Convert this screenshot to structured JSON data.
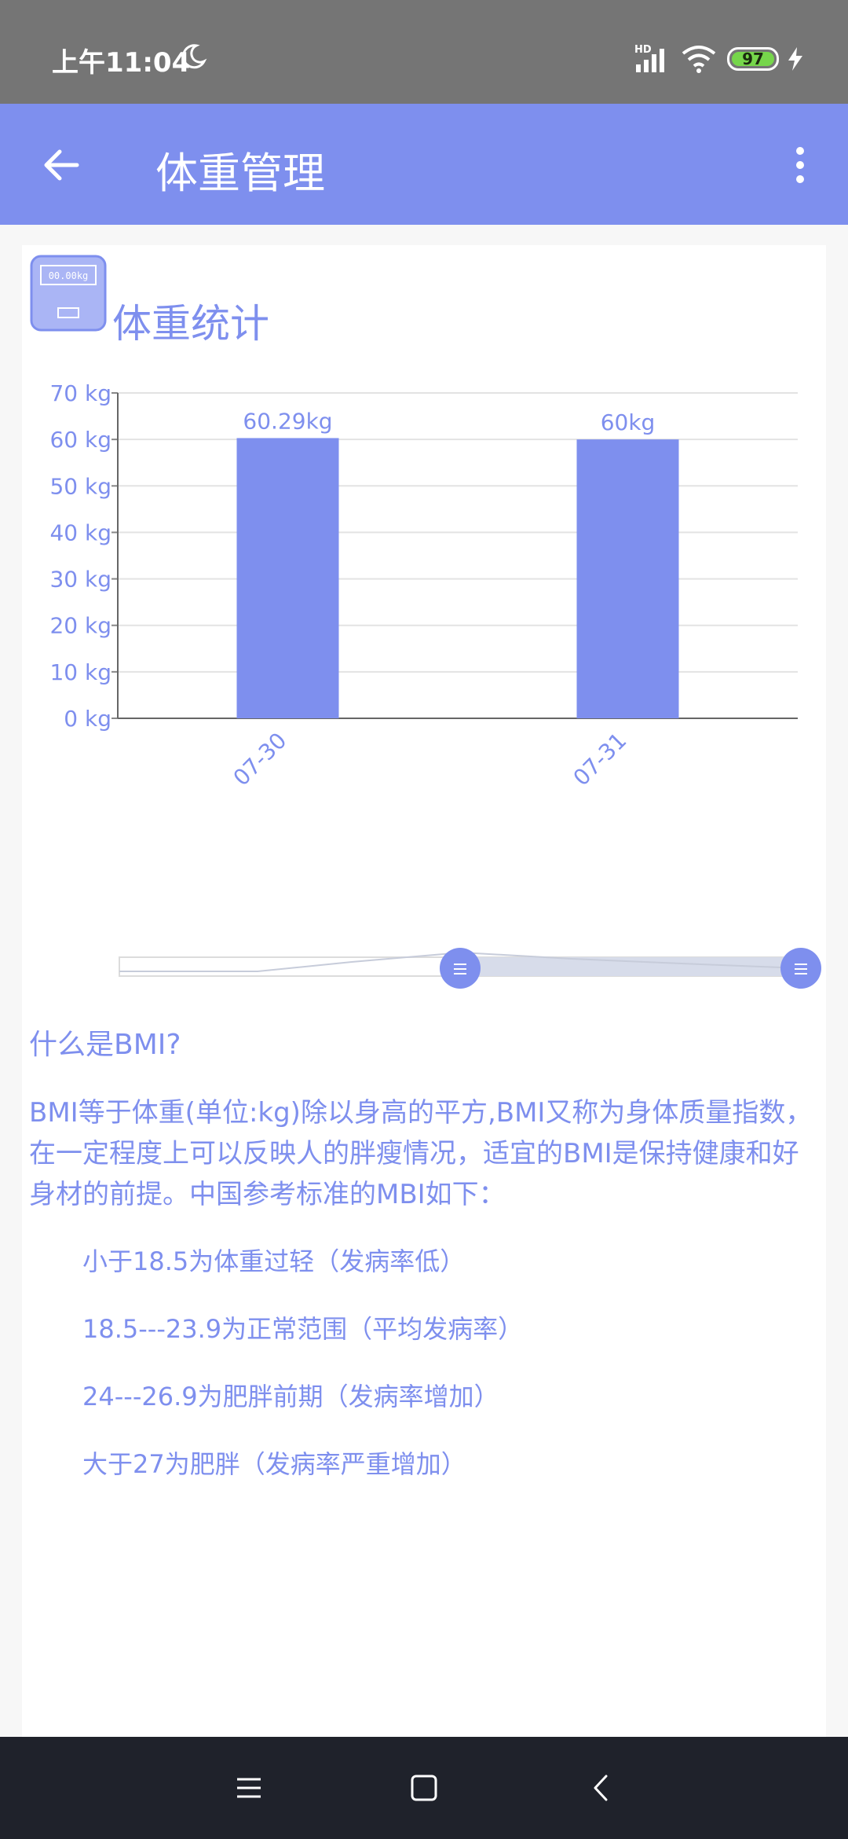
{
  "status_bar": {
    "time": "上午11:04",
    "network_label": "HD",
    "battery_level": "97",
    "icons": [
      "moon-icon",
      "signal-icon",
      "wifi-icon",
      "battery-icon",
      "charging-icon"
    ]
  },
  "app_bar": {
    "title": "体重管理",
    "icons": [
      "back-arrow-icon",
      "more-vert-icon"
    ]
  },
  "colors": {
    "accent": "#7e8fee",
    "status_bar_bg": "#757575",
    "nav_bar_bg": "#1f222b",
    "battery_fill": "#76d64b"
  },
  "section": {
    "title": "体重统计",
    "icon": "scale-icon",
    "scale_display": "00.00kg"
  },
  "chart_data": {
    "type": "bar",
    "categories": [
      "07-30",
      "07-31"
    ],
    "values": [
      60.29,
      60
    ],
    "data_labels": [
      "60.29kg",
      "60kg"
    ],
    "y_ticks": [
      "0 kg",
      "10 kg",
      "20 kg",
      "30 kg",
      "40 kg",
      "50 kg",
      "60 kg",
      "70 kg"
    ],
    "ylim": [
      0,
      70
    ],
    "grid": true,
    "bar_color": "#7e8fee"
  },
  "zoom_slider": {
    "start_handle": "slider-handle-icon",
    "end_handle": "slider-handle-icon",
    "range_start": 0.5,
    "range_end": 1.0
  },
  "bmi": {
    "question": "什么是BMI?",
    "description": "BMI等于体重(单位:kg)除以身高的平方,BMI又称为身体质量指数，在一定程度上可以反映人的胖瘦情况，适宜的BMI是保持健康和好身材的前提。中国参考标准的MBI如下：",
    "items": [
      "小于18.5为体重过轻（发病率低）",
      "18.5---23.9为正常范围（平均发病率）",
      "24---26.9为肥胖前期（发病率增加）",
      "大于27为肥胖（发病率严重增加）"
    ]
  },
  "nav_bar": {
    "icons": [
      "menu-icon",
      "home-icon",
      "back-icon"
    ]
  }
}
